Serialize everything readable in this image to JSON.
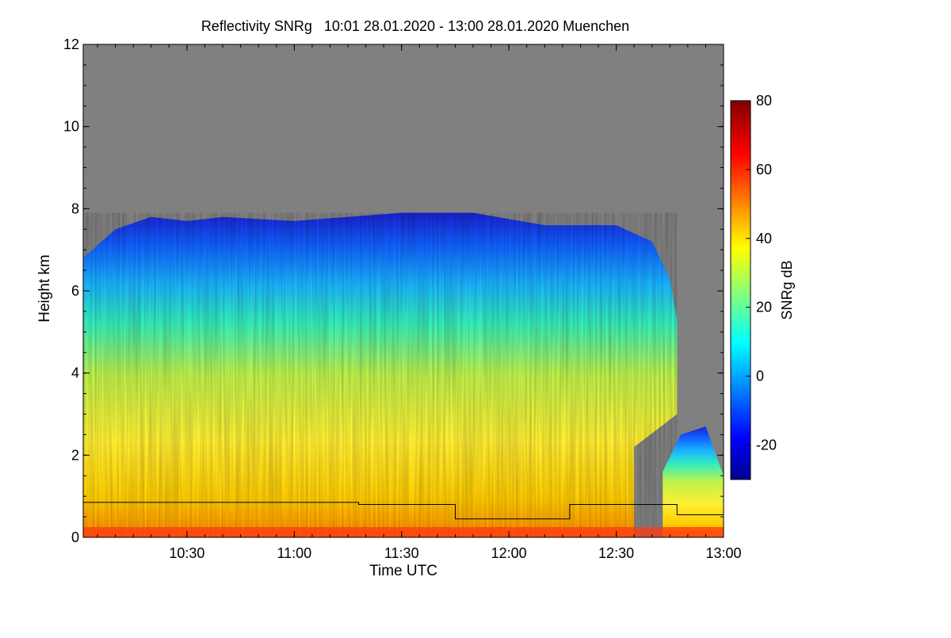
{
  "chart_data": {
    "type": "heatmap",
    "title": "Reflectivity SNRg   10:01 28.01.2020 - 13:00 28.01.2020 Muenchen",
    "xlabel": "Time UTC",
    "ylabel": "Height km",
    "xlim": [
      "10:01",
      "13:00"
    ],
    "xticks": [
      "10:30",
      "11:00",
      "11:30",
      "12:00",
      "12:30",
      "13:00"
    ],
    "ylim": [
      0,
      12
    ],
    "yticks": [
      "0",
      "2",
      "4",
      "6",
      "8",
      "10",
      "12"
    ],
    "colorbar": {
      "label": "SNRg dB",
      "range": [
        -30,
        80
      ],
      "ticks": [
        "-20",
        "0",
        "20",
        "40",
        "60",
        "80"
      ],
      "colormap": "jet"
    },
    "background_color": "#808080",
    "cloud_top_km": [
      {
        "time": "10:01",
        "top": 6.8
      },
      {
        "time": "10:10",
        "top": 7.5
      },
      {
        "time": "10:20",
        "top": 7.8
      },
      {
        "time": "10:30",
        "top": 7.7
      },
      {
        "time": "10:40",
        "top": 7.8
      },
      {
        "time": "11:00",
        "top": 7.7
      },
      {
        "time": "11:30",
        "top": 7.9
      },
      {
        "time": "11:50",
        "top": 7.9
      },
      {
        "time": "12:10",
        "top": 7.6
      },
      {
        "time": "12:30",
        "top": 7.6
      },
      {
        "time": "12:40",
        "top": 7.2
      },
      {
        "time": "12:45",
        "top": 6.3
      },
      {
        "time": "12:47",
        "top": 5.3
      }
    ],
    "threshold_line_km": [
      {
        "from": "10:01",
        "to": "11:18",
        "height": 0.85
      },
      {
        "from": "11:18",
        "to": "11:45",
        "height": 0.8
      },
      {
        "from": "11:45",
        "to": "12:17",
        "height": 0.45
      },
      {
        "from": "12:17",
        "to": "12:47",
        "height": 0.8
      },
      {
        "from": "12:47",
        "to": "13:00",
        "height": 0.55
      }
    ]
  }
}
